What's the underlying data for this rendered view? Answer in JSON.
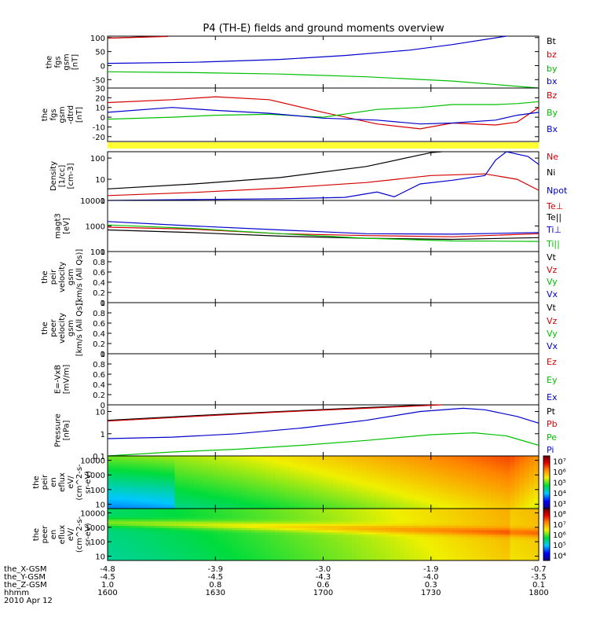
{
  "figure": {
    "title": "P4 (TH-E) fields and ground moments overview"
  },
  "chart_data": [
    {
      "type": "line",
      "panel": "fgs_gsm",
      "ylabel_lines": [
        "the",
        "fgs",
        "gsm",
        "[nT]"
      ],
      "ylim": [
        -80,
        105
      ],
      "yticks": [
        100,
        50,
        0,
        -50
      ],
      "x_hours": [
        0,
        2
      ],
      "series": [
        {
          "name": "Bt",
          "color": "#000000",
          "points": [
            [
              0,
              98
            ],
            [
              0.28,
              105
            ]
          ]
        },
        {
          "name": "bz",
          "color": "#d40000",
          "points": [
            [
              0,
              98
            ],
            [
              0.28,
              104
            ]
          ]
        },
        {
          "name": "by",
          "color": "#00c000",
          "points": [
            [
              0,
              -22
            ],
            [
              0.4,
              -25
            ],
            [
              0.8,
              -30
            ],
            [
              1.2,
              -40
            ],
            [
              1.6,
              -55
            ],
            [
              2.0,
              -80
            ]
          ]
        },
        {
          "name": "bx",
          "color": "#0000cc",
          "points": [
            [
              0,
              8
            ],
            [
              0.4,
              12
            ],
            [
              0.8,
              22
            ],
            [
              1.1,
              36
            ],
            [
              1.4,
              55
            ],
            [
              1.6,
              75
            ],
            [
              1.85,
              105
            ]
          ]
        }
      ]
    },
    {
      "type": "line",
      "panel": "fgs_gsm_detrend",
      "ylabel_lines": [
        "the",
        "fgs",
        "gsm",
        "-dtrd",
        "[nT]"
      ],
      "ylim": [
        -25,
        30
      ],
      "yticks": [
        30,
        20,
        10,
        0,
        -10,
        -20
      ],
      "x_hours": [
        0,
        2
      ],
      "series": [
        {
          "name": "Bz",
          "color": "#d40000",
          "points": [
            [
              0,
              15
            ],
            [
              0.3,
              18
            ],
            [
              0.5,
              21
            ],
            [
              0.75,
              18
            ],
            [
              1.0,
              5
            ],
            [
              1.25,
              -7
            ],
            [
              1.45,
              -12
            ],
            [
              1.6,
              -6
            ],
            [
              1.8,
              -8
            ],
            [
              1.9,
              -5
            ],
            [
              2.0,
              10
            ]
          ]
        },
        {
          "name": "By",
          "color": "#00c000",
          "points": [
            [
              0,
              -2
            ],
            [
              0.3,
              0
            ],
            [
              0.5,
              2
            ],
            [
              0.75,
              3
            ],
            [
              1.0,
              0
            ],
            [
              1.25,
              8
            ],
            [
              1.45,
              10
            ],
            [
              1.6,
              13
            ],
            [
              1.8,
              13
            ],
            [
              1.9,
              14
            ],
            [
              2.0,
              16
            ]
          ]
        },
        {
          "name": "Bx",
          "color": "#0000cc",
          "points": [
            [
              0,
              5
            ],
            [
              0.3,
              10
            ],
            [
              0.5,
              7
            ],
            [
              0.75,
              4
            ],
            [
              1.0,
              -1
            ],
            [
              1.25,
              -3
            ],
            [
              1.45,
              -7
            ],
            [
              1.6,
              -6
            ],
            [
              1.8,
              -3
            ],
            [
              1.9,
              2
            ],
            [
              2.0,
              5
            ]
          ]
        }
      ]
    },
    {
      "type": "line",
      "panel": "density",
      "log": true,
      "ylabel_lines": [
        "Density",
        "[1/cc]",
        "[cm-3]"
      ],
      "ylim": [
        1,
        200
      ],
      "yticks": [
        100,
        10,
        1
      ],
      "x_hours": [
        0,
        2
      ],
      "series": [
        {
          "name": "Ne",
          "color": "#d40000",
          "points": [
            [
              0,
              1.7
            ],
            [
              0.4,
              2.4
            ],
            [
              0.8,
              3.8
            ],
            [
              1.2,
              7
            ],
            [
              1.5,
              15
            ],
            [
              1.75,
              18
            ],
            [
              1.9,
              10
            ],
            [
              2.0,
              3
            ]
          ]
        },
        {
          "name": "Ni",
          "color": "#000000",
          "points": [
            [
              0,
              3.5
            ],
            [
              0.4,
              6
            ],
            [
              0.8,
              12
            ],
            [
              1.2,
              40
            ],
            [
              1.5,
              180
            ],
            [
              1.55,
              200
            ]
          ]
        },
        {
          "name": "Npot",
          "color": "#0000cc",
          "points": [
            [
              0,
              1
            ],
            [
              0.4,
              1.1
            ],
            [
              0.8,
              1.2
            ],
            [
              1.1,
              1.4
            ],
            [
              1.25,
              2.5
            ],
            [
              1.33,
              1.5
            ],
            [
              1.45,
              6
            ],
            [
              1.6,
              9
            ],
            [
              1.75,
              15
            ],
            [
              1.8,
              80
            ],
            [
              1.85,
              200
            ],
            [
              1.95,
              120
            ],
            [
              2.0,
              50
            ]
          ]
        }
      ]
    },
    {
      "type": "line",
      "panel": "temperature",
      "log": true,
      "ylabel_lines": [
        "magt3",
        "[eV]"
      ],
      "ylim": [
        100,
        10000
      ],
      "yticks": [
        10000,
        1000,
        100
      ],
      "x_hours": [
        0,
        2
      ],
      "series": [
        {
          "name": "Te⊥",
          "color": "#d40000",
          "points": [
            [
              0,
              900
            ],
            [
              0.4,
              750
            ],
            [
              0.8,
              500
            ],
            [
              1.2,
              420
            ],
            [
              1.6,
              380
            ],
            [
              2.0,
              500
            ]
          ]
        },
        {
          "name": "Te||",
          "color": "#000000",
          "points": [
            [
              0,
              700
            ],
            [
              0.4,
              550
            ],
            [
              0.8,
              400
            ],
            [
              1.2,
              330
            ],
            [
              1.6,
              300
            ],
            [
              2.0,
              350
            ]
          ]
        },
        {
          "name": "Ti⊥",
          "color": "#0000cc",
          "points": [
            [
              0,
              1500
            ],
            [
              0.4,
              1000
            ],
            [
              0.8,
              700
            ],
            [
              1.2,
              500
            ],
            [
              1.6,
              480
            ],
            [
              2.0,
              550
            ]
          ]
        },
        {
          "name": "Ti||",
          "color": "#00c000",
          "points": [
            [
              0,
              1100
            ],
            [
              0.4,
              800
            ],
            [
              0.8,
              500
            ],
            [
              1.2,
              330
            ],
            [
              1.6,
              260
            ],
            [
              2.0,
              250
            ]
          ]
        }
      ]
    },
    {
      "type": "line",
      "panel": "peir_velocity",
      "ylabel_lines": [
        "the",
        "peir",
        "velocity",
        "gsm",
        "[km/s (All Qs)]"
      ],
      "ylim": [
        0,
        1
      ],
      "yticks": [
        0,
        0.2,
        0.4,
        0.6,
        0.8,
        1.0
      ],
      "legend": [
        "Vt",
        "Vz",
        "Vy",
        "Vx"
      ],
      "series": []
    },
    {
      "type": "line",
      "panel": "peer_velocity",
      "ylabel_lines": [
        "the",
        "peer",
        "velocity",
        "gsm",
        "[km/s (All Qs)]"
      ],
      "ylim": [
        0,
        1
      ],
      "yticks": [
        0,
        0.2,
        0.4,
        0.6,
        0.8,
        1.0
      ],
      "legend": [
        "Vt",
        "Vz",
        "Vy",
        "Vx"
      ],
      "series": []
    },
    {
      "type": "line",
      "panel": "efield",
      "ylabel_lines": [
        "E=-VxB",
        "[mV/m]"
      ],
      "ylim": [
        0,
        1
      ],
      "yticks": [
        0,
        0.2,
        0.4,
        0.6,
        0.8,
        1.0
      ],
      "legend": [
        "Ez",
        "Ey",
        "Ex"
      ],
      "series": []
    },
    {
      "type": "line",
      "panel": "pressure",
      "log": true,
      "ylabel_lines": [
        "Pressure",
        "[nPa]"
      ],
      "ylim": [
        0.1,
        20
      ],
      "yticks": [
        10.0,
        1.0,
        0.1
      ],
      "x_hours": [
        0,
        2
      ],
      "series": [
        {
          "name": "Pt",
          "color": "#000000",
          "points": [
            [
              0,
              4
            ],
            [
              0.4,
              6.5
            ],
            [
              0.8,
              10
            ],
            [
              1.2,
              15
            ],
            [
              1.5,
              20
            ]
          ]
        },
        {
          "name": "Pb",
          "color": "#d40000",
          "points": [
            [
              0,
              3.7
            ],
            [
              0.4,
              6
            ],
            [
              0.8,
              9.5
            ],
            [
              1.2,
              14
            ],
            [
              1.5,
              19
            ],
            [
              1.55,
              20
            ]
          ]
        },
        {
          "name": "Pe",
          "color": "#00c000",
          "points": [
            [
              0,
              0.08
            ],
            [
              0.3,
              0.15
            ],
            [
              0.6,
              0.2
            ],
            [
              0.9,
              0.3
            ],
            [
              1.2,
              0.5
            ],
            [
              1.5,
              0.9
            ],
            [
              1.7,
              1.1
            ],
            [
              1.85,
              0.8
            ],
            [
              2.0,
              0.3
            ]
          ]
        },
        {
          "name": "Pi",
          "color": "#0000cc",
          "points": [
            [
              0,
              0.6
            ],
            [
              0.3,
              0.7
            ],
            [
              0.6,
              1.0
            ],
            [
              0.9,
              1.8
            ],
            [
              1.2,
              4
            ],
            [
              1.45,
              10
            ],
            [
              1.65,
              14
            ],
            [
              1.75,
              12
            ],
            [
              1.9,
              6
            ],
            [
              2.0,
              3
            ]
          ]
        }
      ]
    },
    {
      "type": "heatmap",
      "panel": "peir_en_eflux",
      "ylabel_lines": [
        "the",
        "peir",
        "en",
        "eflux",
        "eV/",
        "(cm^2-s-",
        "sr-eV)"
      ],
      "log": true,
      "ylim": [
        5,
        20000
      ],
      "yticks": [
        10000,
        1000,
        100,
        10
      ],
      "colorbar_ticks": [
        "10⁷",
        "10⁶",
        "10⁵",
        "10⁴",
        "10³"
      ],
      "colorbar_exponents": [
        7,
        6,
        5,
        4,
        3
      ],
      "colorbar_range_exponent": [
        2.5,
        7.5
      ]
    },
    {
      "type": "heatmap",
      "panel": "peer_en_eflux",
      "ylabel_lines": [
        "the",
        "peer",
        "en",
        "eflux",
        "eV/",
        "(cm^2-s-",
        "sr-eV)"
      ],
      "log": true,
      "ylim": [
        5,
        20000
      ],
      "yticks": [
        10000,
        1000,
        100,
        10
      ],
      "colorbar_ticks": [
        "10⁸",
        "10⁷",
        "10⁶",
        "10⁵",
        "10⁴"
      ],
      "colorbar_exponents": [
        8,
        7,
        6,
        5,
        4
      ],
      "colorbar_range_exponent": [
        3.5,
        8.5
      ]
    }
  ],
  "x_axis": {
    "row_labels": [
      "the_X-GSM",
      "the_Y-GSM",
      "the_Z-GSM",
      "hhmm",
      "2010 Apr 12"
    ],
    "hours": [
      0,
      0.5,
      1.0,
      1.5,
      2.0
    ],
    "rows": [
      [
        "-4.8",
        "-3.9",
        "-3.0",
        "-1.9",
        "-0.7"
      ],
      [
        "-4.5",
        "-4.5",
        "-4.3",
        "-4.0",
        "-3.5"
      ],
      [
        "1.0",
        "0.8",
        "0.6",
        "0.3",
        "0.1"
      ],
      [
        "1600",
        "1630",
        "1700",
        "1730",
        "1800"
      ]
    ]
  },
  "legends": {
    "fgs_gsm": [
      {
        "text": "Bt",
        "color": "#000000"
      },
      {
        "text": "bz",
        "color": "#d40000"
      },
      {
        "text": "by",
        "color": "#00c000"
      },
      {
        "text": "bx",
        "color": "#0000cc"
      }
    ],
    "fgs_gsm_detrend": [
      {
        "text": "Bz",
        "color": "#d40000"
      },
      {
        "text": "By",
        "color": "#00c000"
      },
      {
        "text": "Bx",
        "color": "#0000cc"
      }
    ],
    "density": [
      {
        "text": "Ne",
        "color": "#d40000"
      },
      {
        "text": "Ni",
        "color": "#000000"
      },
      {
        "text": "Npot",
        "color": "#0000cc"
      }
    ],
    "temperature": [
      {
        "text": "Te⊥",
        "color": "#d40000"
      },
      {
        "text": "Te||",
        "color": "#000000"
      },
      {
        "text": "Ti⊥",
        "color": "#0000cc"
      },
      {
        "text": "Ti||",
        "color": "#00c000"
      }
    ],
    "peir_velocity": [
      {
        "text": "Vt",
        "color": "#000000"
      },
      {
        "text": "Vz",
        "color": "#d40000"
      },
      {
        "text": "Vy",
        "color": "#00c000"
      },
      {
        "text": "Vx",
        "color": "#0000cc"
      }
    ],
    "peer_velocity": [
      {
        "text": "Vt",
        "color": "#000000"
      },
      {
        "text": "Vz",
        "color": "#d40000"
      },
      {
        "text": "Vy",
        "color": "#00c000"
      },
      {
        "text": "Vx",
        "color": "#0000cc"
      }
    ],
    "efield": [
      {
        "text": "Ez",
        "color": "#d40000"
      },
      {
        "text": "Ey",
        "color": "#00c000"
      },
      {
        "text": "Ex",
        "color": "#0000cc"
      }
    ],
    "pressure": [
      {
        "text": "Pt",
        "color": "#000000"
      },
      {
        "text": "Pb",
        "color": "#d40000"
      },
      {
        "text": "Pe",
        "color": "#00c000"
      },
      {
        "text": "Pi",
        "color": "#0000cc"
      }
    ]
  },
  "status_bar": {
    "color": "#ffff33"
  }
}
